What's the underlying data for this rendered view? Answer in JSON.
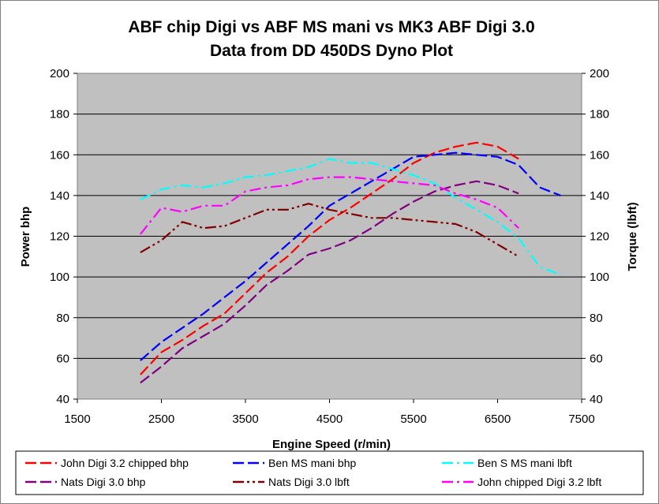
{
  "chart_data": {
    "type": "line",
    "title": "ABF chip Digi vs ABF MS mani vs MK3 ABF Digi 3.0",
    "subtitle": "Data from DD 450DS Dyno Plot",
    "xlabel": "Engine Speed (r/min)",
    "ylabel": "Power bhp",
    "y2label": "Torque (lbft)",
    "xlim": [
      1500,
      7500
    ],
    "ylim": [
      40,
      200
    ],
    "y2lim": [
      40,
      200
    ],
    "x_ticks": [
      "1500",
      "2500",
      "3500",
      "4500",
      "5500",
      "6500",
      "7500"
    ],
    "y_ticks": [
      "40",
      "60",
      "80",
      "100",
      "120",
      "140",
      "160",
      "180",
      "200"
    ],
    "y2_ticks": [
      "40",
      "60",
      "80",
      "100",
      "120",
      "140",
      "160",
      "180",
      "200"
    ],
    "plot_background": "#c0c0c0",
    "grid": "horizontal",
    "legend_position": "bottom",
    "series": [
      {
        "name": "John Digi 3.2 chipped bhp",
        "axis": "left",
        "color": "#ff0000",
        "dash": "dash",
        "x": [
          2250,
          2500,
          2750,
          3000,
          3250,
          3500,
          3750,
          4000,
          4250,
          4500,
          4750,
          5000,
          5250,
          5500,
          5750,
          6000,
          6250,
          6500,
          6750
        ],
        "y": [
          52,
          63,
          69,
          76,
          82,
          92,
          102,
          110,
          120,
          128,
          134,
          141,
          148,
          156,
          161,
          164,
          166,
          164,
          158
        ]
      },
      {
        "name": "Ben MS mani bhp",
        "axis": "left",
        "color": "#0000ff",
        "dash": "dash",
        "x": [
          2250,
          2500,
          2750,
          3000,
          3250,
          3500,
          3750,
          4000,
          4250,
          4500,
          4750,
          5000,
          5250,
          5500,
          5750,
          6000,
          6250,
          6500,
          6750,
          7000,
          7250
        ],
        "y": [
          59,
          68,
          75,
          82,
          90,
          98,
          107,
          116,
          125,
          135,
          141,
          147,
          153,
          159,
          160,
          161,
          160,
          159,
          155,
          144,
          140
        ]
      },
      {
        "name": "Ben S MS mani lbft",
        "axis": "right",
        "color": "#00ffff",
        "dash": "dashdot",
        "x": [
          2250,
          2500,
          2750,
          3000,
          3250,
          3500,
          3750,
          4000,
          4250,
          4500,
          4750,
          5000,
          5250,
          5500,
          5750,
          6000,
          6250,
          6500,
          6750,
          7000,
          7250
        ],
        "y": [
          138,
          143,
          145,
          144,
          146,
          149,
          150,
          152,
          154,
          158,
          156,
          156,
          153,
          150,
          146,
          139,
          133,
          127,
          119,
          105,
          101
        ]
      },
      {
        "name": "Nats Digi 3.0 bhp",
        "axis": "left",
        "color": "#800080",
        "dash": "dash",
        "x": [
          2250,
          2500,
          2750,
          3000,
          3250,
          3500,
          3750,
          4000,
          4250,
          4500,
          4750,
          5000,
          5250,
          5500,
          5750,
          6000,
          6250,
          6500,
          6750
        ],
        "y": [
          48,
          56,
          65,
          71,
          77,
          86,
          96,
          103,
          111,
          114,
          118,
          124,
          131,
          137,
          142,
          145,
          147,
          145,
          141
        ]
      },
      {
        "name": "Nats Digi 3.0 lbft",
        "axis": "right",
        "color": "#800000",
        "dash": "dashdotdot",
        "x": [
          2250,
          2500,
          2750,
          3000,
          3250,
          3500,
          3750,
          4000,
          4250,
          4500,
          4750,
          5000,
          5250,
          5500,
          5750,
          6000,
          6250,
          6500,
          6750
        ],
        "y": [
          112,
          118,
          127,
          124,
          125,
          129,
          133,
          133,
          136,
          133,
          131,
          129,
          129,
          128,
          127,
          126,
          122,
          116,
          110
        ]
      },
      {
        "name": "John chipped Digi 3.2 lbft",
        "axis": "right",
        "color": "#ff00ff",
        "dash": "dashdot",
        "x": [
          2250,
          2500,
          2750,
          3000,
          3250,
          3500,
          3750,
          4000,
          4250,
          4500,
          4750,
          5000,
          5250,
          5500,
          5750,
          6000,
          6250,
          6500,
          6750
        ],
        "y": [
          121,
          134,
          132,
          135,
          135,
          142,
          144,
          145,
          148,
          149,
          149,
          148,
          147,
          146,
          145,
          141,
          138,
          134,
          124
        ]
      }
    ]
  }
}
